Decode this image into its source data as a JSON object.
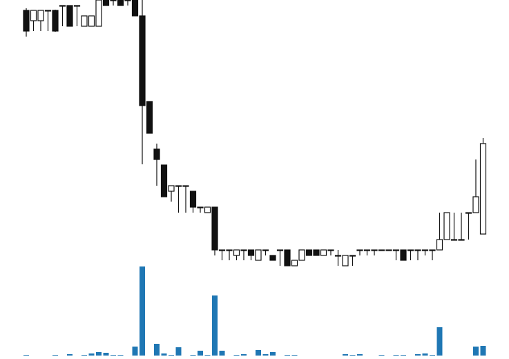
{
  "chart_data": {
    "type": "candlestick",
    "categories": [
      null,
      null,
      null,
      null,
      null,
      null,
      null,
      null,
      null,
      null,
      null,
      null,
      null,
      null,
      null,
      null,
      null,
      null,
      null,
      null,
      null,
      null,
      null,
      null,
      null,
      null,
      null,
      null,
      null,
      null,
      null,
      null,
      null,
      null,
      null,
      null,
      null,
      null,
      null,
      null,
      null,
      null,
      null,
      null,
      null,
      null,
      null,
      null,
      null,
      null,
      null,
      null,
      null,
      null,
      null,
      null,
      null,
      null,
      null,
      null,
      null,
      null,
      null,
      null
    ],
    "open": [
      385,
      370,
      370,
      385,
      385,
      392,
      392,
      392,
      362,
      362,
      362,
      410,
      400,
      405,
      400,
      410,
      377,
      253,
      184,
      161,
      123,
      131,
      131,
      123,
      100,
      92,
      100,
      38,
      38,
      30,
      38,
      38,
      23,
      38,
      30,
      38,
      38,
      15,
      23,
      38,
      38,
      30,
      38,
      30,
      15,
      30,
      38,
      38,
      38,
      38,
      38,
      38,
      38,
      38,
      38,
      38,
      38,
      38,
      53,
      53,
      53,
      92,
      92,
      61
    ],
    "high": [
      388,
      385,
      385,
      385,
      386,
      392,
      392,
      392,
      377,
      377,
      405,
      410,
      400,
      405,
      400,
      410,
      405,
      253,
      192,
      161,
      131,
      131,
      131,
      123,
      100,
      100,
      100,
      38,
      38,
      38,
      38,
      38,
      38,
      38,
      30,
      38,
      38,
      23,
      38,
      38,
      38,
      38,
      38,
      38,
      30,
      30,
      38,
      38,
      38,
      38,
      38,
      38,
      38,
      38,
      38,
      38,
      38,
      92,
      92,
      92,
      92,
      92,
      169,
      200
    ],
    "low": [
      347,
      355,
      355,
      355,
      354,
      362,
      362,
      362,
      362,
      362,
      362,
      392,
      392,
      392,
      392,
      377,
      162,
      207,
      131,
      115,
      108,
      92,
      92,
      92,
      92,
      92,
      30,
      23,
      23,
      23,
      23,
      23,
      23,
      30,
      23,
      15,
      15,
      15,
      23,
      30,
      30,
      30,
      30,
      15,
      15,
      15,
      30,
      30,
      30,
      38,
      38,
      23,
      23,
      23,
      23,
      30,
      23,
      38,
      53,
      53,
      53,
      53,
      92,
      61
    ],
    "close": [
      355,
      385,
      385,
      384,
      355,
      391,
      362,
      391,
      377,
      377,
      400,
      392,
      399,
      392,
      399,
      377,
      247,
      207,
      169,
      115,
      131,
      130,
      130,
      100,
      99,
      100,
      38,
      37,
      37,
      38,
      37,
      30,
      38,
      37,
      23,
      37,
      15,
      23,
      38,
      30,
      30,
      38,
      37,
      29,
      30,
      29,
      37,
      37,
      37,
      38,
      38,
      37,
      23,
      37,
      37,
      37,
      37,
      53,
      92,
      53,
      53,
      92,
      115,
      192
    ],
    "ylim": [
      0,
      400
    ],
    "up_color": "#ffffff",
    "down_color": "#111111",
    "edge_color": "#111111",
    "volume": {
      "color": "#1f77b4",
      "ylim": [
        0,
        130
      ],
      "values": [
        1,
        0,
        0,
        0,
        1,
        0,
        2,
        0,
        1,
        3,
        5,
        4,
        1,
        1,
        0,
        13,
        129,
        0,
        17,
        3,
        1,
        12,
        0,
        1,
        7,
        1,
        87,
        7,
        0,
        1,
        2,
        0,
        8,
        2,
        5,
        0,
        1,
        1,
        0,
        0,
        0,
        0,
        0,
        0,
        2,
        1,
        2,
        0,
        0,
        1,
        0,
        1,
        1,
        0,
        2,
        3,
        1,
        41,
        0,
        0,
        0,
        0,
        13,
        14
      ]
    }
  }
}
